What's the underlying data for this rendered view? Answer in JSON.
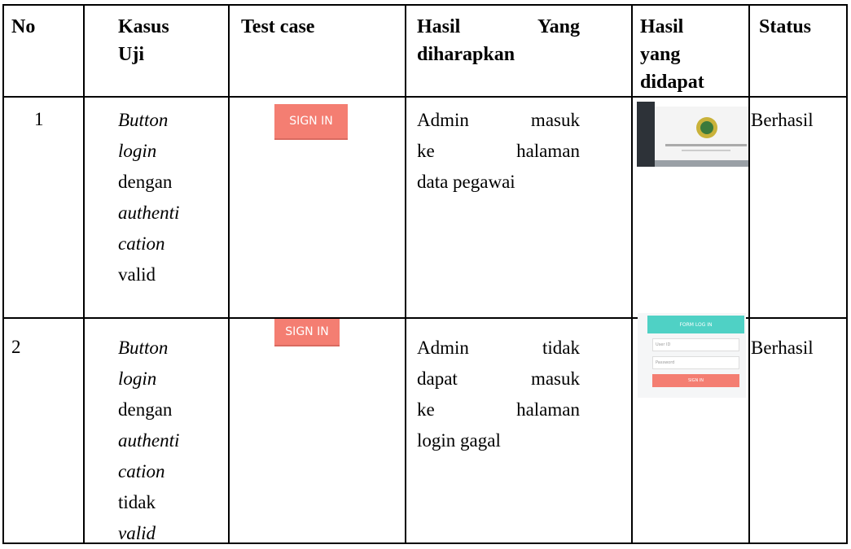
{
  "table": {
    "header": {
      "no": "No",
      "case": [
        "Kasus",
        "Uji"
      ],
      "test": "Test case",
      "expected": [
        "Hasil Yang",
        "diharapkan"
      ],
      "result": [
        "Hasil",
        "yang",
        "didapat"
      ],
      "status": "Status"
    },
    "rows": [
      {
        "no": "1",
        "case": [
          "Button",
          "login",
          "dengan",
          "authenti",
          "cation",
          "valid"
        ],
        "test": "SIGN IN",
        "expected": [
          "Admin masuk",
          "ke halaman",
          "data pegawai"
        ],
        "status": "Berhasil"
      },
      {
        "no": "2",
        "case": [
          "Button",
          "login",
          "dengan",
          "authenti",
          "cation",
          "tidak",
          "valid"
        ],
        "test": "SIGN IN",
        "expected": [
          "Admin tidak",
          "dapat masuk",
          "ke halaman",
          "login gagal"
        ],
        "result": {
          "title": "FORM LOG IN",
          "user": "User ID",
          "password": "Password",
          "button": "SIGN IN"
        },
        "status": "Berhasil"
      }
    ]
  }
}
